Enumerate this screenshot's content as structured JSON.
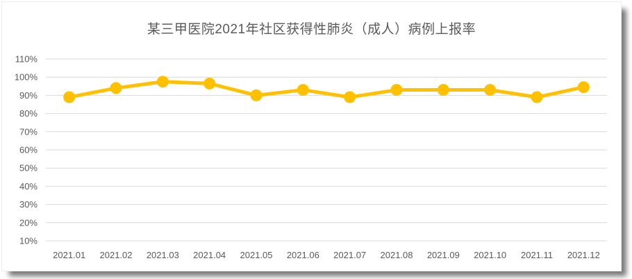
{
  "chart_data": {
    "type": "line",
    "title": "某三甲医院2021年社区获得性肺炎（成人）病例上报率",
    "categories": [
      "2021.01",
      "2021.02",
      "2021.03",
      "2021.04",
      "2021.05",
      "2021.06",
      "2021.07",
      "2021.08",
      "2021.09",
      "2021.10",
      "2021.11",
      "2021.12"
    ],
    "values": [
      89,
      94,
      97.5,
      96.5,
      90,
      93,
      89,
      93,
      93,
      93,
      89,
      94.5
    ],
    "unit": "%",
    "ylim": [
      10,
      110
    ],
    "y_tick_step": 10,
    "y_tick_labels": [
      "110%",
      "100%",
      "90%",
      "80%",
      "70%",
      "60%",
      "50%",
      "40%",
      "30%",
      "20%",
      "10%"
    ],
    "xlabel": "",
    "ylabel": "",
    "grid": "horizontal",
    "legend": "none",
    "line_color": "#FFC000",
    "marker": "circle",
    "marker_color": "#FFC000",
    "gridline_color": "#D9D9D9",
    "axis_text_color": "#595959",
    "title_color": "#595959"
  }
}
